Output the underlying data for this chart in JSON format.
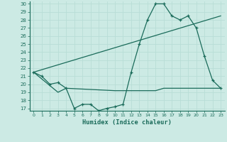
{
  "title": "",
  "xlabel": "Humidex (Indice chaleur)",
  "ylabel": "",
  "background_color": "#cceae4",
  "grid_color": "#b0d8d0",
  "line_color": "#1a6b5a",
  "ylim": [
    17,
    30
  ],
  "xlim": [
    -0.5,
    23.5
  ],
  "yticks": [
    17,
    18,
    19,
    20,
    21,
    22,
    23,
    24,
    25,
    26,
    27,
    28,
    29,
    30
  ],
  "xticks": [
    0,
    1,
    2,
    3,
    4,
    5,
    6,
    7,
    8,
    9,
    10,
    11,
    12,
    13,
    14,
    15,
    16,
    17,
    18,
    19,
    20,
    21,
    22,
    23
  ],
  "line1_x": [
    0,
    1,
    2,
    3,
    4,
    5,
    6,
    7,
    8,
    9,
    10,
    11,
    12,
    13,
    14,
    15,
    16,
    17,
    18,
    19,
    20,
    21,
    22,
    23
  ],
  "line1_y": [
    21.5,
    21.0,
    20.0,
    20.2,
    19.5,
    17.0,
    17.5,
    17.5,
    16.7,
    17.0,
    17.2,
    17.5,
    21.5,
    25.0,
    28.0,
    30.0,
    30.0,
    28.5,
    28.0,
    28.5,
    27.0,
    23.5,
    20.5,
    19.5
  ],
  "line2_x": [
    0,
    23
  ],
  "line2_y": [
    21.5,
    28.5
  ],
  "line3_x": [
    0,
    3,
    4,
    10,
    11,
    12,
    13,
    14,
    15,
    16,
    17,
    18,
    19,
    20,
    21,
    22,
    23
  ],
  "line3_y": [
    21.5,
    19.0,
    19.5,
    19.2,
    19.2,
    19.2,
    19.2,
    19.2,
    19.2,
    19.5,
    19.5,
    19.5,
    19.5,
    19.5,
    19.5,
    19.5,
    19.5
  ]
}
